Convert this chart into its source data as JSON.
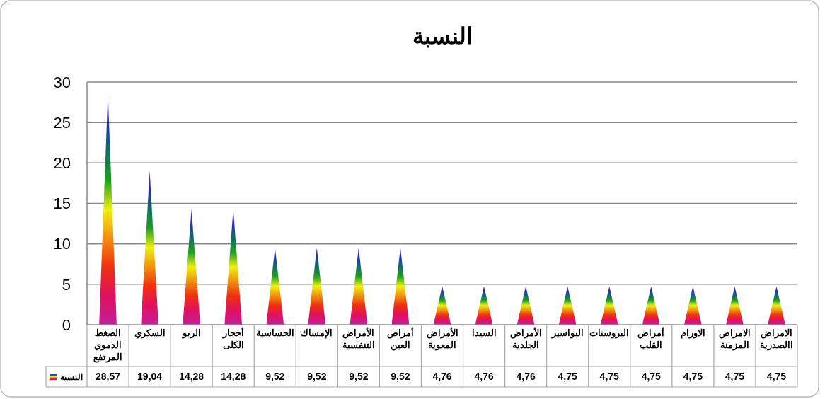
{
  "chart_data": {
    "type": "bar",
    "title": "النسبة",
    "categories": [
      "الضغط الدموي المرتفع",
      "السكري",
      "الربو",
      "أحجار الكلى",
      "الحساسية",
      "الإمساك",
      "الأمراض التنفسية",
      "أمراض العين",
      "الأمراض المعوية",
      "السيدا",
      "الأمراض الجلدية",
      "البواسير",
      "البروستات",
      "أمراض القلب",
      "الاورام",
      "الامراض المزمنة",
      "الامراض االصدرية"
    ],
    "series": [
      {
        "name": "النسبة",
        "values": [
          28.57,
          19.04,
          14.28,
          14.28,
          9.52,
          9.52,
          9.52,
          9.52,
          4.76,
          4.76,
          4.76,
          4.75,
          4.75,
          4.75,
          4.75,
          4.75,
          4.75
        ],
        "value_labels": [
          "28,57",
          "19,04",
          "14,28",
          "14,28",
          "9,52",
          "9,52",
          "9,52",
          "9,52",
          "4,76",
          "4,76",
          "4,76",
          "4,75",
          "4,75",
          "4,75",
          "4,75",
          "4,75",
          "4,75"
        ]
      }
    ],
    "ylim": [
      0,
      30
    ],
    "yticks": [
      0,
      5,
      10,
      15,
      20,
      25,
      30
    ],
    "grid": "y"
  }
}
